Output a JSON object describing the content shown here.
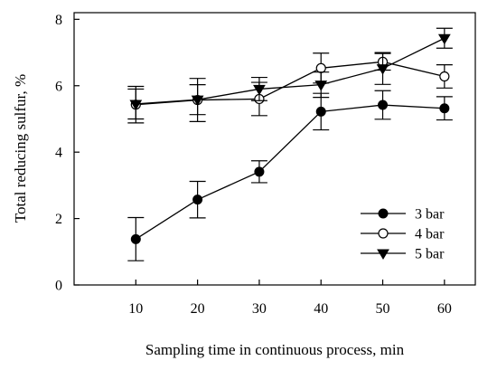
{
  "chart_data": {
    "type": "line",
    "title": "",
    "xlabel": "Sampling time in continuous process, min",
    "ylabel": "Total reducing sulfur, %",
    "x": [
      10,
      20,
      30,
      40,
      50,
      60
    ],
    "xticks": [
      "10",
      "20",
      "30",
      "40",
      "50",
      "60"
    ],
    "yticks": [
      "0",
      "2",
      "4",
      "6",
      "8"
    ],
    "xlim": [
      0,
      65
    ],
    "ylim": [
      0,
      8.2
    ],
    "grid": false,
    "legend_position": "bottom-right",
    "series": [
      {
        "name": "3 bar",
        "marker": "filled-circle",
        "values": [
          1.38,
          2.57,
          3.41,
          5.22,
          5.42,
          5.32
        ],
        "errors": [
          0.65,
          0.55,
          0.33,
          0.55,
          0.43,
          0.35
        ]
      },
      {
        "name": "4 bar",
        "marker": "open-circle",
        "values": [
          5.43,
          5.57,
          5.6,
          6.53,
          6.72,
          6.28
        ],
        "errors": [
          0.55,
          0.65,
          0.5,
          0.45,
          0.25,
          0.35
        ]
      },
      {
        "name": "5 bar",
        "marker": "filled-down-triangle",
        "values": [
          5.45,
          5.58,
          5.9,
          6.03,
          6.52,
          7.43
        ],
        "errors": [
          0.45,
          0.45,
          0.35,
          0.38,
          0.48,
          0.3
        ]
      }
    ]
  }
}
